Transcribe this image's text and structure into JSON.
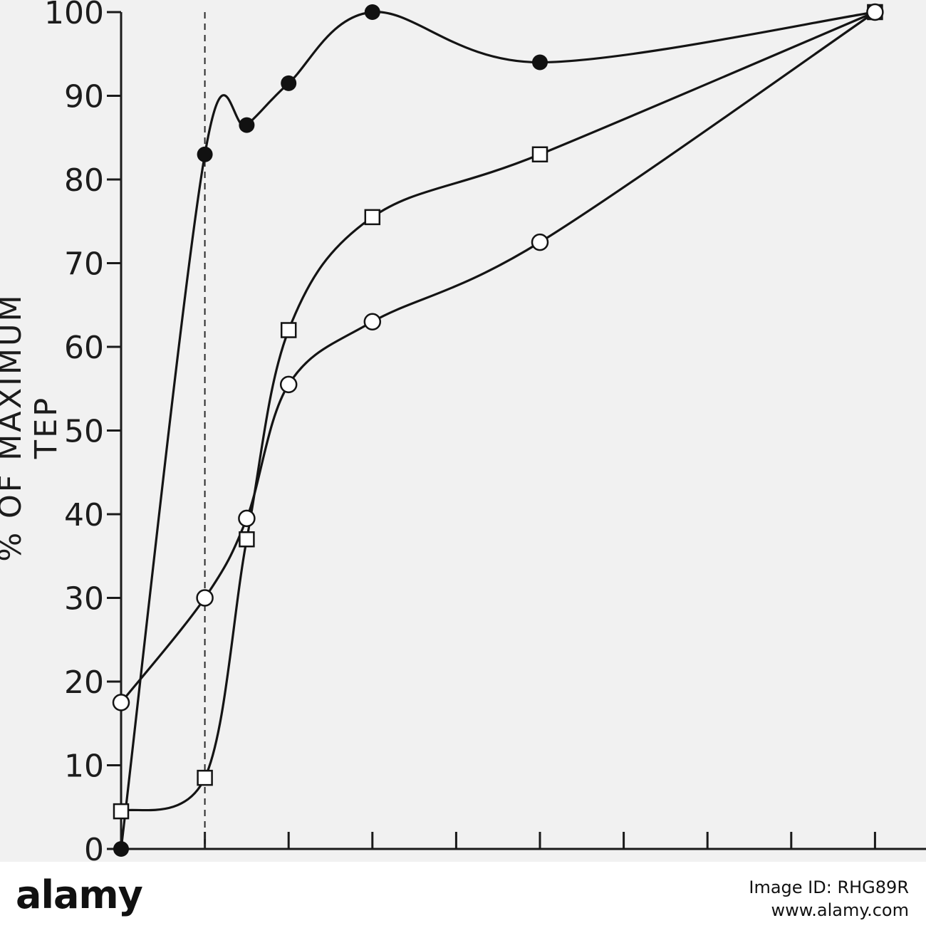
{
  "chart_data": {
    "type": "line",
    "ylabel": "% OF MAXIMUM TEP",
    "xlabel": "",
    "ylim": [
      0,
      100
    ],
    "yticks": [
      0,
      10,
      20,
      30,
      40,
      50,
      60,
      70,
      80,
      90,
      100
    ],
    "x_tick_count": 10,
    "x_marker_line": 1,
    "grid": false,
    "series": [
      {
        "marker": "filled-circle",
        "x": [
          0,
          1,
          1.5,
          2,
          3,
          5,
          9
        ],
        "values": [
          0,
          83,
          86.5,
          91.5,
          100,
          94,
          100
        ]
      },
      {
        "marker": "open-square",
        "x": [
          0,
          1,
          1.5,
          2,
          3,
          5,
          9
        ],
        "values": [
          4.5,
          8.5,
          37,
          62,
          75.5,
          83,
          100
        ]
      },
      {
        "marker": "open-circle",
        "x": [
          0,
          1,
          1.5,
          2,
          3,
          5,
          9
        ],
        "values": [
          17.5,
          30,
          39.5,
          55.5,
          63,
          72.5,
          100
        ]
      }
    ]
  },
  "footer": {
    "brand": "alamy",
    "image_id": "Image ID: RHG89R",
    "url": "www.alamy.com"
  }
}
